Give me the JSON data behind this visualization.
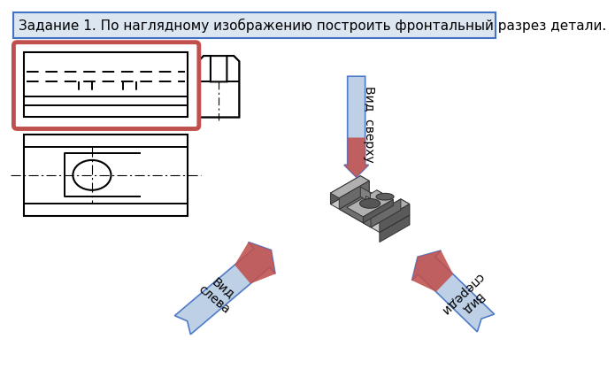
{
  "title": "Задание 1. По наглядному изображению построить фронтальный разрез детали.",
  "title_fontsize": 11,
  "bg_color": "#ffffff",
  "title_box_color": "#dce6f1",
  "title_border_color": "#4472c4",
  "arrow_sverhu_text": "Вид  сверху",
  "arrow_sleva_text": "Вид\nслева",
  "arrow_spere_text": "Вид\nспереди",
  "part_dark": "#5a5a5a",
  "part_mid": "#808080",
  "part_light": "#b0b0b0",
  "part_lighter": "#c8c8c8",
  "part_slot": "#6a6a6a",
  "part_inner": "#707070",
  "arrow_blue_fill": "#b8cce4",
  "arrow_blue_dark": "#4472c4",
  "arrow_red_fill": "#c0504d",
  "red_outline_color": "#c0504d",
  "drawing_lw": 1.4
}
